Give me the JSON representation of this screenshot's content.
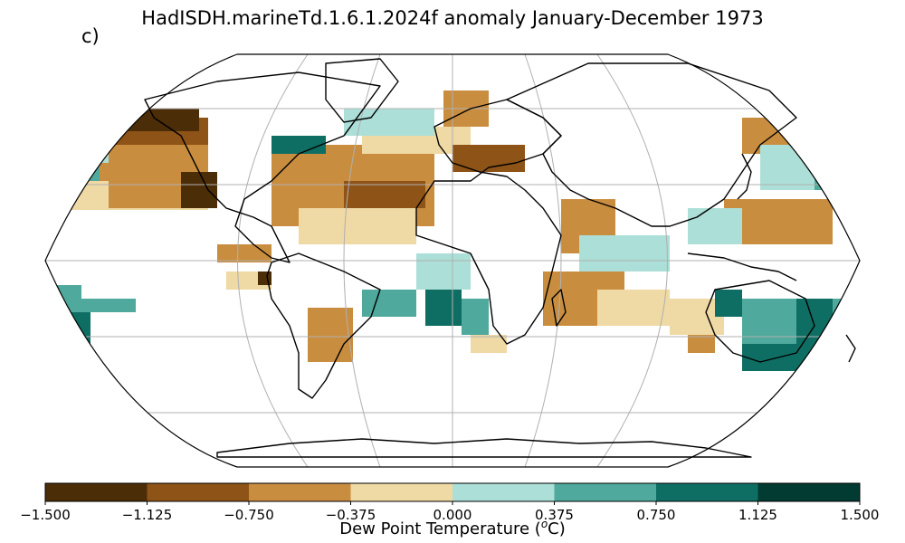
{
  "title": "HadISDH.marineTd.1.6.1.2024f anomaly January-December 1973",
  "panel_label": "c)",
  "colorbar": {
    "label_prefix": "Dew Point Temperature (",
    "label_super": "o",
    "label_suffix": "C)",
    "ticks": [
      "−1.500",
      "−1.125",
      "−0.750",
      "−0.375",
      "0.000",
      "0.375",
      "0.750",
      "1.125",
      "1.500"
    ],
    "colors": [
      "#4b2d08",
      "#8e5316",
      "#c98d3f",
      "#efd9a4",
      "#acdfd7",
      "#4fa99c",
      "#0f6e63",
      "#023b32"
    ]
  },
  "map": {
    "projection": "Robinson",
    "graticule": true,
    "coastlines": true,
    "missing_value_fill": "white"
  }
}
